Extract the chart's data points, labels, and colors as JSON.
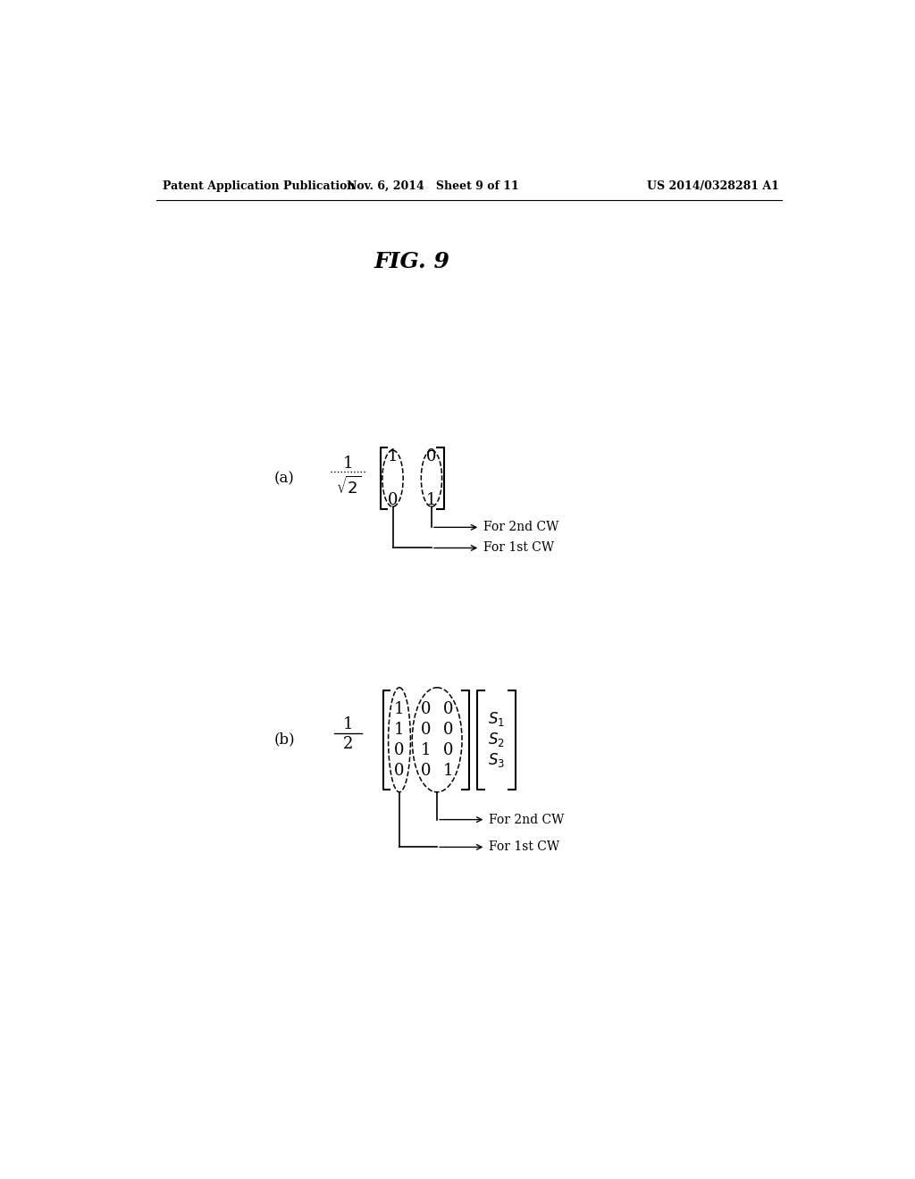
{
  "background_color": "#ffffff",
  "header_left": "Patent Application Publication",
  "header_mid": "Nov. 6, 2014   Sheet 9 of 11",
  "header_right": "US 2014/0328281 A1",
  "fig_title": "FIG. 9",
  "label_a": "(a)",
  "label_b": "(b)",
  "panel_a": {
    "fraction_num": "1",
    "fraction_den": "$\\sqrt{2}$",
    "matrix": [
      [
        "1",
        "0"
      ],
      [
        "0",
        "1"
      ]
    ],
    "arrow1_label": "For 2nd CW",
    "arrow2_label": "For 1st CW"
  },
  "panel_b": {
    "fraction_num": "1",
    "fraction_den": "2",
    "matrix": [
      [
        "1",
        "0",
        "0"
      ],
      [
        "1",
        "0",
        "0"
      ],
      [
        "0",
        "1",
        "0"
      ],
      [
        "0",
        "0",
        "1"
      ]
    ],
    "s_vector": [
      "$S_1$",
      "$S_2$",
      "$S_3$"
    ],
    "arrow1_label": "For 2nd CW",
    "arrow2_label": "For 1st CW"
  }
}
